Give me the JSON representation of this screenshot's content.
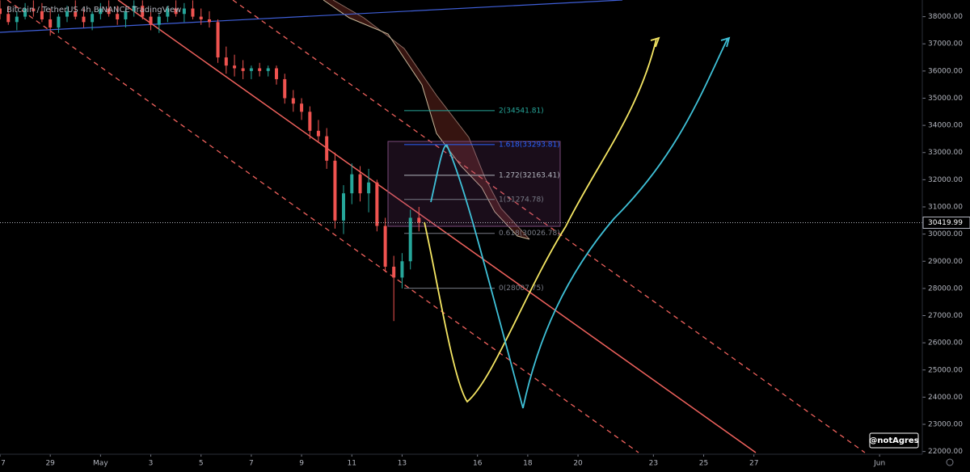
{
  "chart_data": {
    "type": "candlestick",
    "title": "Bitcoin / TetherUS  4h  BINANCE  TradingView",
    "watermark": "@notAgres",
    "x": [
      0,
      0.33,
      0.67,
      1,
      1.33,
      1.67,
      2,
      2.33,
      2.67,
      3,
      3.33,
      3.67,
      4,
      4.33,
      4.67,
      5,
      5.33,
      5.67,
      6,
      6.33,
      6.67,
      7,
      7.33,
      7.67,
      8,
      8.33,
      8.67,
      9,
      9.33,
      9.67,
      10,
      10.33,
      10.67,
      11,
      11.33,
      11.67,
      12,
      12.33,
      12.67,
      13,
      13.33,
      13.67,
      14,
      14.33,
      14.67,
      15,
      15.33,
      15.67,
      16,
      16.33,
      16.67
    ],
    "open": [
      38300,
      38100,
      37800,
      38000,
      38300,
      38200,
      37900,
      37600,
      38000,
      38200,
      38000,
      37800,
      38100,
      38300,
      38100,
      37900,
      38200,
      38400,
      38000,
      37700,
      38000,
      38300,
      38100,
      38300,
      38000,
      37900,
      37800,
      36500,
      36200,
      36100,
      36000,
      36100,
      36000,
      36100,
      35700,
      35000,
      34800,
      34500,
      33800,
      33600,
      32700,
      30500,
      31500,
      32200,
      31500,
      31900,
      30300,
      28800,
      28400,
      29000,
      30600
    ],
    "high": [
      38600,
      38400,
      38200,
      38500,
      38600,
      38500,
      38300,
      38100,
      38400,
      38600,
      38300,
      38200,
      38500,
      38600,
      38400,
      38300,
      38600,
      38600,
      38300,
      38100,
      38400,
      38600,
      38500,
      38600,
      38300,
      38200,
      37900,
      36900,
      36600,
      36400,
      36200,
      36300,
      36200,
      36200,
      35900,
      35300,
      35000,
      34700,
      34200,
      33900,
      33000,
      31800,
      32600,
      32500,
      32400,
      32000,
      30600,
      29200,
      29300,
      30900,
      31000
    ],
    "low": [
      37900,
      37700,
      37500,
      37900,
      38000,
      37800,
      37300,
      37400,
      37800,
      37900,
      37600,
      37500,
      37900,
      38000,
      37700,
      37600,
      38000,
      37900,
      37500,
      37400,
      37800,
      38000,
      37800,
      37900,
      37700,
      37600,
      36300,
      35900,
      35800,
      35700,
      35700,
      35800,
      35800,
      35500,
      34800,
      34500,
      34200,
      33500,
      33400,
      32400,
      30200,
      30000,
      31100,
      31200,
      30800,
      30100,
      28600,
      26800,
      28000,
      28700,
      30100
    ],
    "close": [
      38100,
      37800,
      38000,
      38300,
      38200,
      37900,
      37600,
      38000,
      38200,
      38000,
      37800,
      38100,
      38300,
      38100,
      37900,
      38200,
      38400,
      38000,
      37700,
      38000,
      38300,
      38100,
      38300,
      38000,
      37900,
      37800,
      36500,
      36200,
      36100,
      36000,
      36100,
      36000,
      36100,
      35700,
      35000,
      34800,
      34500,
      33800,
      33600,
      32700,
      30500,
      31500,
      32200,
      31500,
      31900,
      30300,
      28800,
      28400,
      29000,
      30600,
      30420
    ],
    "up_color": "#26a69a",
    "down_color": "#ef5350",
    "last_price": 30419.99,
    "fib_levels": [
      {
        "label": "2(34541.81)",
        "value": 34541.81,
        "color": "#26a69a"
      },
      {
        "label": "1.618(33293.81)",
        "value": 33293.81,
        "color": "#2962ff"
      },
      {
        "label": "1.272(32163.41)",
        "value": 32163.41,
        "color": "#b2b5be"
      },
      {
        "label": "1(31274.78)",
        "value": 31274.78,
        "color": "#787b86"
      },
      {
        "label": "0.618(30026.78)",
        "value": 30026.78,
        "color": "#787b86"
      },
      {
        "label": "0(28007.75)",
        "value": 28007.75,
        "color": "#787b86"
      }
    ],
    "xlim": [
      0,
      36.7
    ],
    "xticks": [
      {
        "value": 0,
        "label": "7"
      },
      {
        "value": 2,
        "label": "29"
      },
      {
        "value": 4,
        "label": "May"
      },
      {
        "value": 6,
        "label": "3"
      },
      {
        "value": 8,
        "label": "5"
      },
      {
        "value": 10,
        "label": "7"
      },
      {
        "value": 12,
        "label": "9"
      },
      {
        "value": 14,
        "label": "11"
      },
      {
        "value": 16,
        "label": "13"
      },
      {
        "value": 19,
        "label": "16"
      },
      {
        "value": 21,
        "label": "18"
      },
      {
        "value": 23,
        "label": "20"
      },
      {
        "value": 26,
        "label": "23"
      },
      {
        "value": 28,
        "label": "25"
      },
      {
        "value": 30,
        "label": "27"
      },
      {
        "value": 35,
        "label": "Jun"
      }
    ],
    "ylim": [
      21900,
      38613
    ],
    "yticks": [
      {
        "value": 22000,
        "label": "22000.00"
      },
      {
        "value": 23000,
        "label": "23000.00"
      },
      {
        "value": 24000,
        "label": "24000.00"
      },
      {
        "value": 25000,
        "label": "25000.00"
      },
      {
        "value": 26000,
        "label": "26000.00"
      },
      {
        "value": 27000,
        "label": "27000.00"
      },
      {
        "value": 28000,
        "label": "28000.00"
      },
      {
        "value": 29000,
        "label": "29000.00"
      },
      {
        "value": 30000,
        "label": "30000.00"
      },
      {
        "value": 31000,
        "label": "31000.00"
      },
      {
        "value": 32000,
        "label": "32000.00"
      },
      {
        "value": 33000,
        "label": "33000.00"
      },
      {
        "value": 34000,
        "label": "34000.00"
      },
      {
        "value": 35000,
        "label": "35000.00"
      },
      {
        "value": 36000,
        "label": "36000.00"
      },
      {
        "value": 37000,
        "label": "37000.00"
      },
      {
        "value": 38000,
        "label": "38000.00"
      }
    ]
  }
}
